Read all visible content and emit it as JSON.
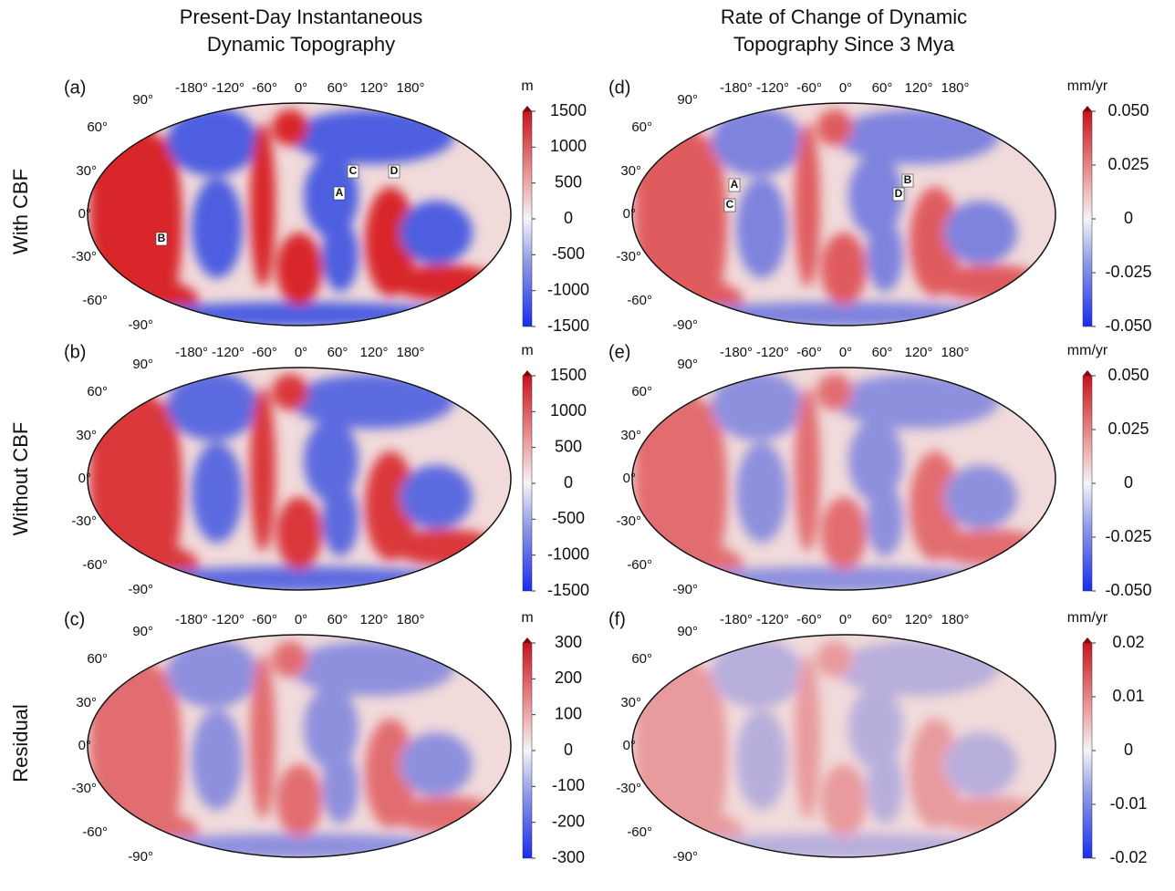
{
  "column_titles": [
    [
      "Present-Day Instantaneous",
      "Dynamic Topography"
    ],
    [
      "Rate of Change of  Dynamic",
      "Topography Since 3 Mya"
    ]
  ],
  "row_labels": [
    "With CBF",
    "Without CBF",
    "Residual"
  ],
  "panels": [
    {
      "label": "(a)",
      "longitude_labels": [
        "-180°",
        "-120°",
        "-60°",
        "0°",
        "60°",
        "120°",
        "180°"
      ],
      "latitude_labels": [
        "90°",
        "60°",
        "30°",
        "0°",
        "-30°",
        "-60°",
        "-90°"
      ],
      "markers": [
        "A",
        "B",
        "C",
        "D"
      ],
      "colorbar": {
        "unit": "m",
        "ticks": [
          1500,
          1000,
          500,
          0,
          -500,
          -1000,
          -1500
        ]
      }
    },
    {
      "label": "(b)",
      "longitude_labels": [
        "-180°",
        "-120°",
        "-60°",
        "0°",
        "60°",
        "120°",
        "180°"
      ],
      "latitude_labels": [
        "90°",
        "60°",
        "30°",
        "0°",
        "-30°",
        "-60°",
        "-90°"
      ],
      "markers": [],
      "colorbar": {
        "unit": "m",
        "ticks": [
          1500,
          1000,
          500,
          0,
          -500,
          -1000,
          -1500
        ]
      }
    },
    {
      "label": "(c)",
      "longitude_labels": [
        "-180°",
        "-120°",
        "-60°",
        "0°",
        "60°",
        "120°",
        "180°"
      ],
      "latitude_labels": [
        "90°",
        "60°",
        "30°",
        "0°",
        "-30°",
        "-60°",
        "-90°"
      ],
      "markers": [],
      "colorbar": {
        "unit": "m",
        "ticks": [
          300,
          200,
          100,
          0,
          -100,
          -200,
          -300
        ]
      }
    },
    {
      "label": "(d)",
      "longitude_labels": [
        "-180°",
        "-120°",
        "-60°",
        "0°",
        "60°",
        "120°",
        "180°"
      ],
      "latitude_labels": [
        "90°",
        "60°",
        "30°",
        "0°",
        "-30°",
        "-60°",
        "-90°"
      ],
      "markers": [
        "A",
        "B",
        "C",
        "D"
      ],
      "colorbar": {
        "unit": "mm/yr",
        "ticks": [
          {
            "value": 0.05,
            "label": "0.050"
          },
          0.025,
          0,
          -0.025,
          {
            "value": -0.05,
            "label": "-0.050"
          }
        ]
      }
    },
    {
      "label": "(e)",
      "longitude_labels": [
        "-180°",
        "-120°",
        "-60°",
        "0°",
        "60°",
        "120°",
        "180°"
      ],
      "latitude_labels": [
        "90°",
        "60°",
        "30°",
        "0°",
        "-30°",
        "-60°",
        "-90°"
      ],
      "markers": [],
      "colorbar": {
        "unit": "mm/yr",
        "ticks": [
          {
            "value": 0.05,
            "label": "0.050"
          },
          0.025,
          0,
          -0.025,
          {
            "value": -0.05,
            "label": "-0.050"
          }
        ]
      }
    },
    {
      "label": "(f)",
      "longitude_labels": [
        "-180°",
        "-120°",
        "-60°",
        "0°",
        "60°",
        "120°",
        "180°"
      ],
      "latitude_labels": [
        "90°",
        "60°",
        "30°",
        "0°",
        "-30°",
        "-60°",
        "-90°"
      ],
      "markers": [],
      "colorbar": {
        "unit": "mm/yr",
        "ticks": [
          0.02,
          0.01,
          0,
          -0.01,
          -0.02
        ]
      }
    }
  ]
}
